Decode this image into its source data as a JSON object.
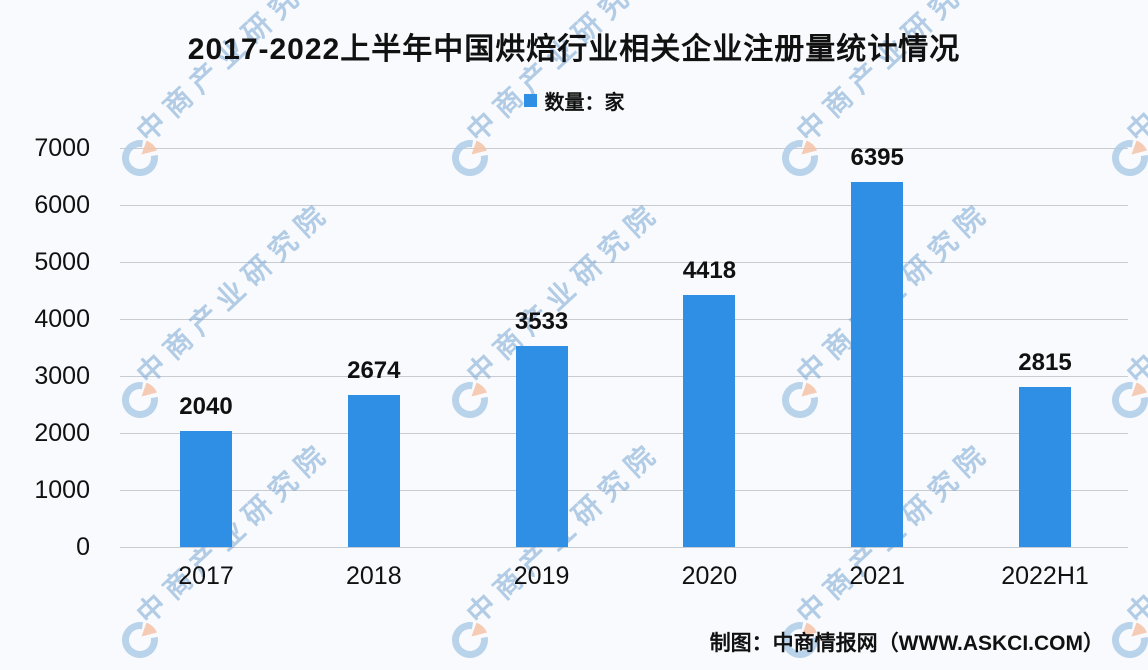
{
  "title": "2017-2022上半年中国烘焙行业相关企业注册量统计情况",
  "legend": {
    "label": "数量：家"
  },
  "attribution": "制图：中商情报网（WWW.ASKCI.COM）",
  "watermark": {
    "text": "中商产业研究院",
    "logo_icon": "cbi-pie-circle-logo"
  },
  "colors": {
    "bar": "#2F8FE5",
    "legend_swatch": "#2F8FE5",
    "grid": "#C8CBCF",
    "background": "#F8FAFD",
    "axis_text": "#111111",
    "watermark_text": "#78A5D4",
    "watermark_logo_blue": "#AFCDE8",
    "watermark_logo_orange": "#F5C3A8"
  },
  "chart_data": {
    "type": "bar",
    "categories": [
      "2017",
      "2018",
      "2019",
      "2020",
      "2021",
      "2022H1"
    ],
    "values": [
      2040,
      2674,
      3533,
      4418,
      6395,
      2815
    ],
    "series_name": "数量：家",
    "title": "2017-2022上半年中国烘焙行业相关企业注册量统计情况",
    "xlabel": "",
    "ylabel": "",
    "ylim": [
      0,
      7000
    ],
    "yticks": [
      0,
      1000,
      2000,
      3000,
      4000,
      5000,
      6000,
      7000
    ],
    "grid": true,
    "legend_position": "top-center",
    "value_labels": true
  }
}
